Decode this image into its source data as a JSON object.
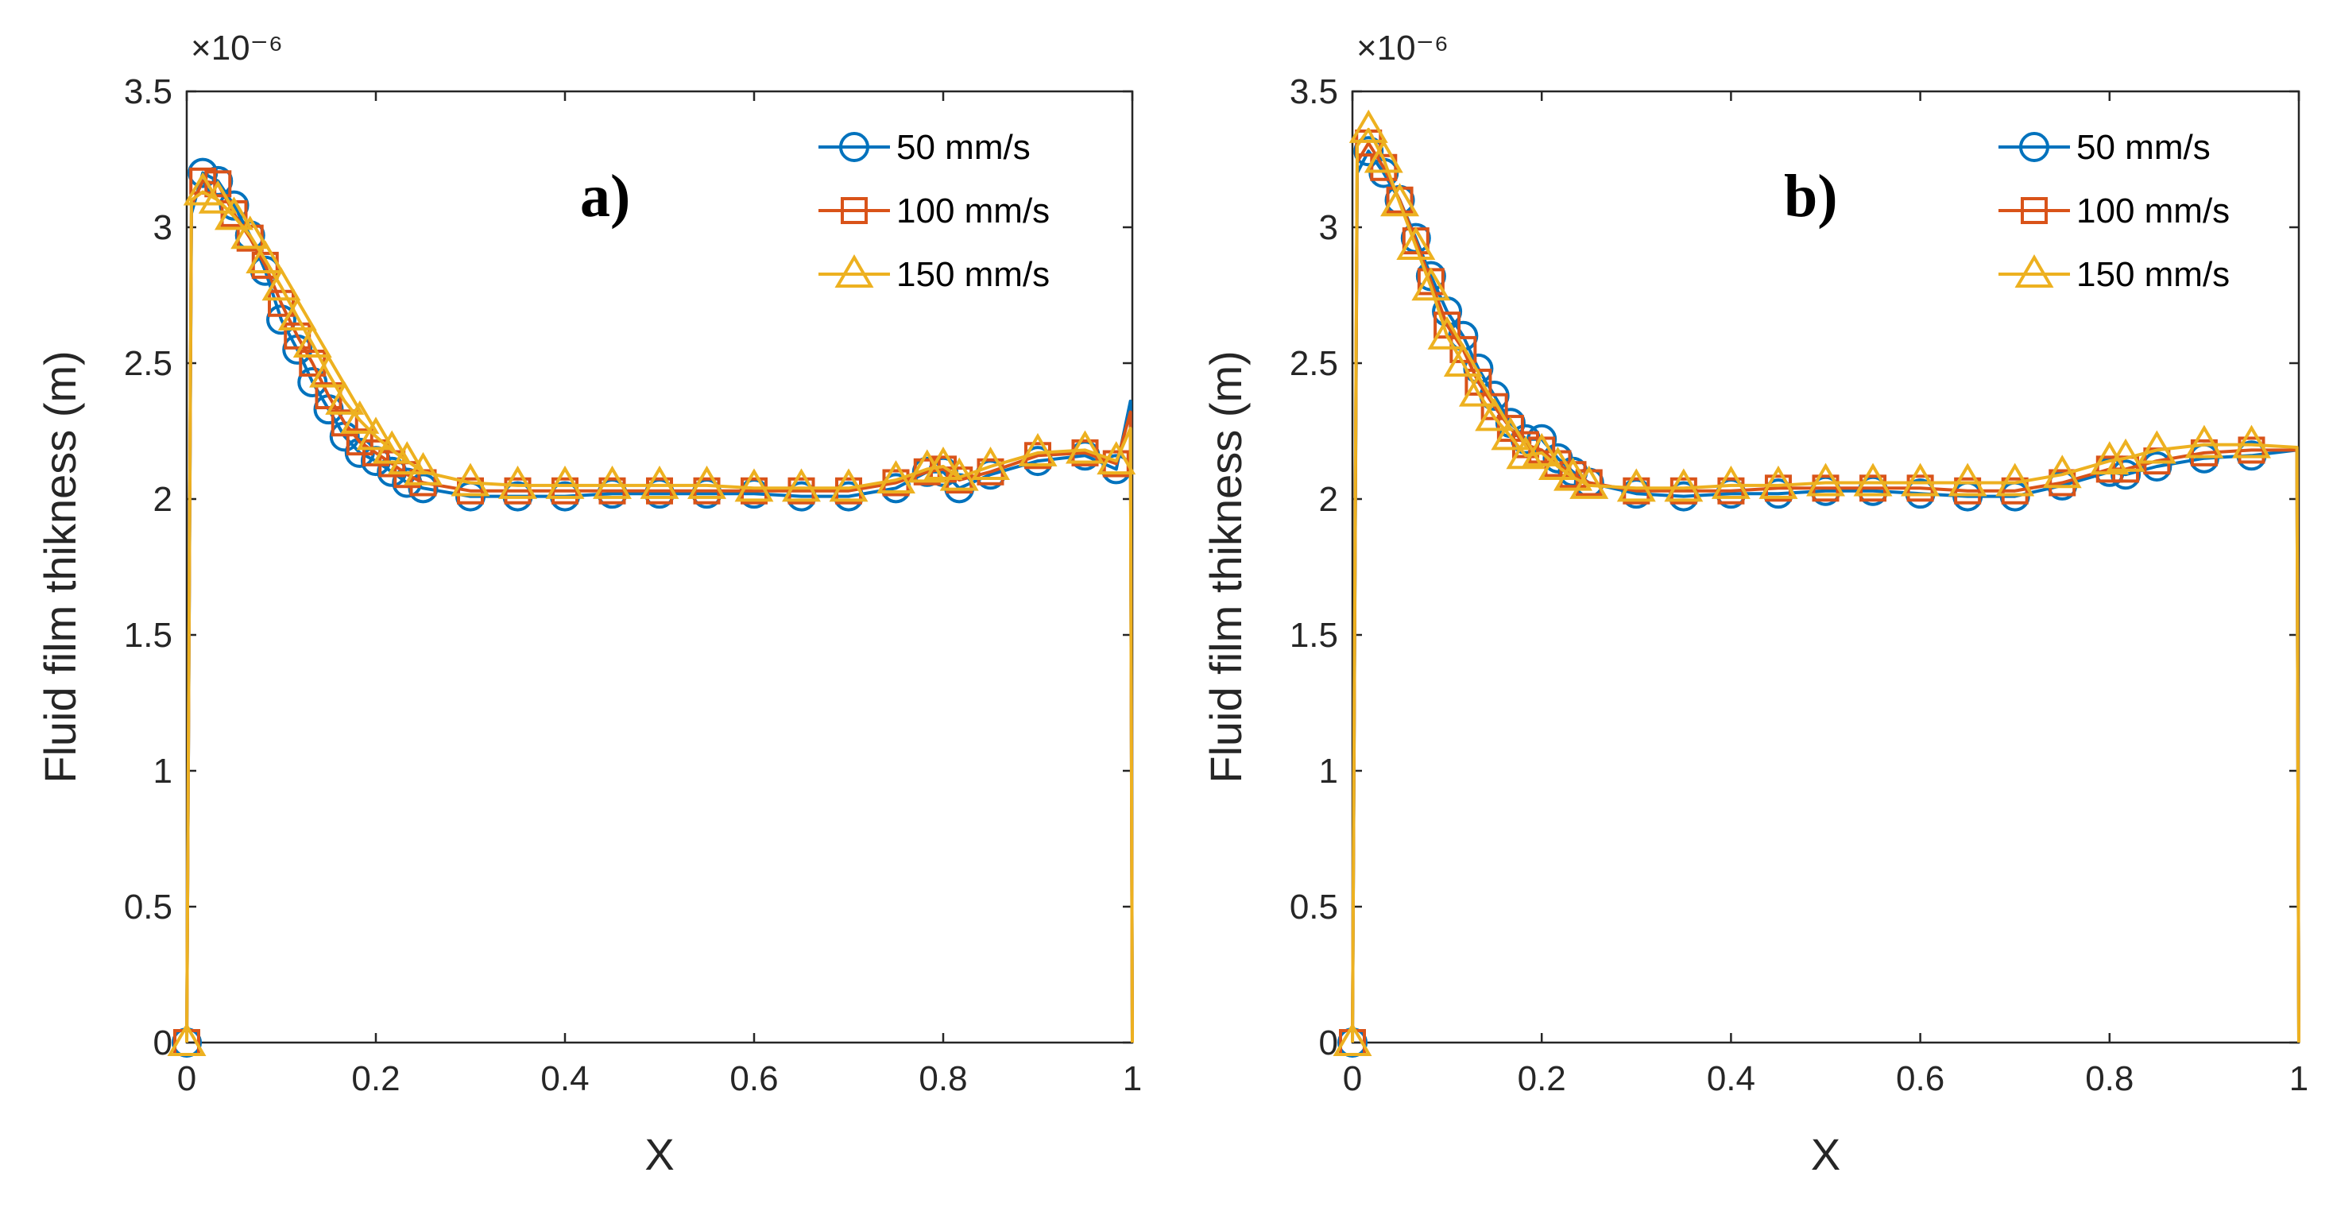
{
  "chart_data": [
    {
      "type": "line",
      "panel_label": "a)",
      "xlabel": "X",
      "ylabel": "Fluid film thikness (m)",
      "y_multiplier_label": "×10⁻⁶",
      "xlim": [
        0,
        1
      ],
      "ylim": [
        0,
        3.5
      ],
      "x_ticks": [
        "0",
        "0.2",
        "0.4",
        "0.6",
        "0.8",
        "1"
      ],
      "y_ticks": [
        "0",
        "0.5",
        "1",
        "1.5",
        "2",
        "2.5",
        "3",
        "3.5"
      ],
      "legend_position": "top-right",
      "series": [
        {
          "name": "50 mm/s",
          "marker": "circle",
          "color": "#0072BD",
          "x": [
            0,
            0.005,
            0.017,
            0.033,
            0.05,
            0.067,
            0.083,
            0.1,
            0.117,
            0.133,
            0.15,
            0.167,
            0.183,
            0.2,
            0.217,
            0.233,
            0.25,
            0.3,
            0.35,
            0.4,
            0.45,
            0.5,
            0.55,
            0.6,
            0.65,
            0.7,
            0.75,
            0.783,
            0.8,
            0.817,
            0.85,
            0.9,
            0.95,
            0.983,
            0.998,
            1.0
          ],
          "y": [
            0,
            3.05,
            3.2,
            3.17,
            3.08,
            2.97,
            2.84,
            2.66,
            2.55,
            2.43,
            2.33,
            2.23,
            2.17,
            2.14,
            2.1,
            2.06,
            2.04,
            2.01,
            2.01,
            2.01,
            2.02,
            2.02,
            2.02,
            2.02,
            2.01,
            2.01,
            2.04,
            2.1,
            2.1,
            2.04,
            2.09,
            2.14,
            2.16,
            2.11,
            2.36,
            0
          ]
        },
        {
          "name": "100 mm/s",
          "marker": "square",
          "color": "#D95319",
          "x": [
            0,
            0.005,
            0.017,
            0.033,
            0.05,
            0.067,
            0.083,
            0.1,
            0.117,
            0.133,
            0.15,
            0.167,
            0.183,
            0.2,
            0.217,
            0.233,
            0.25,
            0.3,
            0.35,
            0.4,
            0.45,
            0.5,
            0.55,
            0.6,
            0.65,
            0.7,
            0.75,
            0.783,
            0.8,
            0.817,
            0.85,
            0.9,
            0.95,
            0.983,
            0.998,
            1.0
          ],
          "y": [
            0,
            3.08,
            3.17,
            3.16,
            3.05,
            2.96,
            2.86,
            2.72,
            2.6,
            2.5,
            2.38,
            2.28,
            2.21,
            2.17,
            2.13,
            2.09,
            2.06,
            2.03,
            2.03,
            2.03,
            2.03,
            2.03,
            2.03,
            2.03,
            2.03,
            2.03,
            2.06,
            2.1,
            2.11,
            2.07,
            2.1,
            2.16,
            2.17,
            2.13,
            2.32,
            0
          ]
        },
        {
          "name": "150 mm/s",
          "marker": "triangle",
          "color": "#EDB120",
          "x": [
            0,
            0.005,
            0.017,
            0.033,
            0.05,
            0.067,
            0.083,
            0.1,
            0.117,
            0.133,
            0.15,
            0.167,
            0.183,
            0.2,
            0.217,
            0.233,
            0.25,
            0.3,
            0.35,
            0.4,
            0.45,
            0.5,
            0.55,
            0.6,
            0.65,
            0.7,
            0.75,
            0.783,
            0.8,
            0.817,
            0.85,
            0.9,
            0.95,
            0.983,
            0.998,
            1.0
          ],
          "y": [
            0,
            3.1,
            3.13,
            3.1,
            3.04,
            2.97,
            2.88,
            2.78,
            2.67,
            2.57,
            2.46,
            2.36,
            2.29,
            2.23,
            2.18,
            2.14,
            2.1,
            2.06,
            2.05,
            2.05,
            2.05,
            2.05,
            2.05,
            2.04,
            2.04,
            2.04,
            2.07,
            2.11,
            2.12,
            2.08,
            2.12,
            2.17,
            2.18,
            2.14,
            2.26,
            0
          ]
        }
      ]
    },
    {
      "type": "line",
      "panel_label": "b)",
      "xlabel": "X",
      "ylabel": "Fluid film thikness (m)",
      "y_multiplier_label": "×10⁻⁶",
      "xlim": [
        0,
        1
      ],
      "ylim": [
        0,
        3.5
      ],
      "x_ticks": [
        "0",
        "0.2",
        "0.4",
        "0.6",
        "0.8",
        "1"
      ],
      "y_ticks": [
        "0",
        "0.5",
        "1",
        "1.5",
        "2",
        "2.5",
        "3",
        "3.5"
      ],
      "legend_position": "top-right",
      "series": [
        {
          "name": "50 mm/s",
          "marker": "circle",
          "color": "#0072BD",
          "x": [
            0,
            0.005,
            0.017,
            0.033,
            0.05,
            0.067,
            0.083,
            0.1,
            0.117,
            0.133,
            0.15,
            0.167,
            0.183,
            0.2,
            0.217,
            0.233,
            0.25,
            0.3,
            0.35,
            0.4,
            0.45,
            0.5,
            0.55,
            0.6,
            0.65,
            0.7,
            0.75,
            0.8,
            0.817,
            0.85,
            0.9,
            0.95,
            0.998,
            1.0
          ],
          "y": [
            0,
            3.2,
            3.28,
            3.2,
            3.1,
            2.96,
            2.82,
            2.69,
            2.6,
            2.48,
            2.38,
            2.28,
            2.22,
            2.22,
            2.15,
            2.1,
            2.06,
            2.02,
            2.01,
            2.02,
            2.02,
            2.03,
            2.03,
            2.02,
            2.01,
            2.01,
            2.05,
            2.1,
            2.09,
            2.12,
            2.15,
            2.16,
            2.18,
            0
          ]
        },
        {
          "name": "100 mm/s",
          "marker": "square",
          "color": "#D95319",
          "x": [
            0,
            0.005,
            0.017,
            0.033,
            0.05,
            0.067,
            0.083,
            0.1,
            0.117,
            0.133,
            0.15,
            0.167,
            0.183,
            0.2,
            0.217,
            0.233,
            0.25,
            0.3,
            0.35,
            0.4,
            0.45,
            0.5,
            0.55,
            0.6,
            0.65,
            0.7,
            0.75,
            0.8,
            0.817,
            0.85,
            0.9,
            0.95,
            0.998,
            1.0
          ],
          "y": [
            0,
            3.24,
            3.31,
            3.22,
            3.1,
            2.95,
            2.8,
            2.64,
            2.55,
            2.43,
            2.34,
            2.26,
            2.2,
            2.18,
            2.13,
            2.09,
            2.06,
            2.03,
            2.03,
            2.03,
            2.04,
            2.04,
            2.04,
            2.04,
            2.03,
            2.03,
            2.06,
            2.11,
            2.11,
            2.14,
            2.17,
            2.18,
            2.18,
            0
          ]
        },
        {
          "name": "150 mm/s",
          "marker": "triangle",
          "color": "#EDB120",
          "x": [
            0,
            0.005,
            0.017,
            0.033,
            0.05,
            0.067,
            0.083,
            0.1,
            0.117,
            0.133,
            0.15,
            0.167,
            0.183,
            0.2,
            0.217,
            0.233,
            0.25,
            0.3,
            0.35,
            0.4,
            0.45,
            0.5,
            0.55,
            0.6,
            0.65,
            0.7,
            0.75,
            0.8,
            0.817,
            0.85,
            0.9,
            0.95,
            0.998,
            1.0
          ],
          "y": [
            0,
            3.3,
            3.36,
            3.25,
            3.09,
            2.93,
            2.78,
            2.6,
            2.5,
            2.39,
            2.3,
            2.23,
            2.16,
            2.17,
            2.12,
            2.08,
            2.05,
            2.04,
            2.04,
            2.05,
            2.05,
            2.06,
            2.06,
            2.06,
            2.06,
            2.06,
            2.09,
            2.14,
            2.15,
            2.18,
            2.2,
            2.2,
            2.19,
            0
          ]
        }
      ]
    }
  ]
}
